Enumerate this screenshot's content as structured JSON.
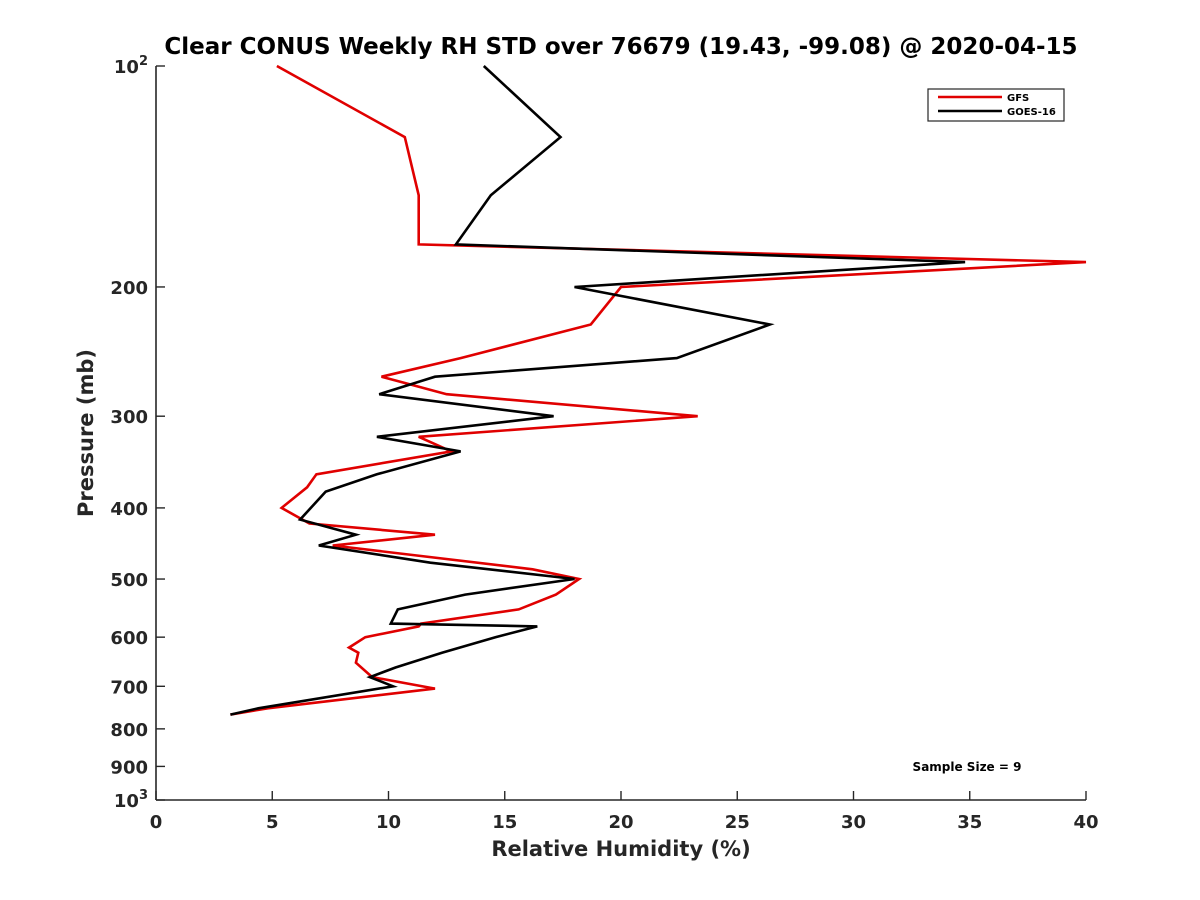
{
  "chart_data": {
    "type": "line",
    "title": "Clear CONUS Weekly RH STD over 76679 (19.43, -99.08) @ 2020-04-15",
    "xlabel": "Relative Humidity (%)",
    "ylabel": "Pressure (mb)",
    "xlim": [
      0,
      40
    ],
    "ylim": [
      100,
      1000
    ],
    "y_scale": "log",
    "y_reversed": true,
    "grid": false,
    "legend_position": "top-right",
    "x_ticks": [
      "0",
      "5",
      "10",
      "15",
      "20",
      "25",
      "30",
      "35",
      "40"
    ],
    "y_ticks": [
      {
        "value": 100,
        "base": "10",
        "exp": "2"
      },
      {
        "value": 200,
        "label": "200"
      },
      {
        "value": 300,
        "label": "300"
      },
      {
        "value": 400,
        "label": "400"
      },
      {
        "value": 500,
        "label": "500"
      },
      {
        "value": 600,
        "label": "600"
      },
      {
        "value": 700,
        "label": "700"
      },
      {
        "value": 800,
        "label": "800"
      },
      {
        "value": 900,
        "label": "900"
      },
      {
        "value": 1000,
        "base": "10",
        "exp": "3"
      }
    ],
    "annotation": "Sample Size = 9",
    "series": [
      {
        "name": "GFS",
        "color": "#e00000",
        "points": [
          [
            5.2,
            100
          ],
          [
            10.7,
            125
          ],
          [
            11.3,
            150
          ],
          [
            11.3,
            175
          ],
          [
            40.0,
            185
          ],
          [
            20.0,
            200
          ],
          [
            18.7,
            225
          ],
          [
            13.1,
            250
          ],
          [
            9.7,
            265
          ],
          [
            12.5,
            280
          ],
          [
            23.3,
            300
          ],
          [
            11.3,
            320
          ],
          [
            12.7,
            335
          ],
          [
            6.9,
            360
          ],
          [
            6.5,
            375
          ],
          [
            5.4,
            400
          ],
          [
            6.6,
            420
          ],
          [
            12.0,
            435
          ],
          [
            7.6,
            450
          ],
          [
            16.2,
            485
          ],
          [
            18.2,
            500
          ],
          [
            17.2,
            525
          ],
          [
            15.6,
            550
          ],
          [
            11.4,
            575
          ],
          [
            11.3,
            580
          ],
          [
            9.0,
            600
          ],
          [
            8.3,
            620
          ],
          [
            8.7,
            630
          ],
          [
            8.6,
            650
          ],
          [
            9.3,
            680
          ],
          [
            12.0,
            705
          ],
          [
            4.8,
            750
          ],
          [
            3.2,
            765
          ]
        ]
      },
      {
        "name": "GOES-16",
        "color": "#000000",
        "points": [
          [
            14.1,
            100
          ],
          [
            17.4,
            125
          ],
          [
            14.4,
            150
          ],
          [
            12.9,
            175
          ],
          [
            34.8,
            185
          ],
          [
            18.0,
            200
          ],
          [
            26.4,
            225
          ],
          [
            22.4,
            250
          ],
          [
            12.0,
            265
          ],
          [
            9.6,
            280
          ],
          [
            17.1,
            300
          ],
          [
            9.5,
            320
          ],
          [
            13.1,
            335
          ],
          [
            9.5,
            360
          ],
          [
            7.3,
            380
          ],
          [
            6.2,
            415
          ],
          [
            8.6,
            435
          ],
          [
            7.0,
            450
          ],
          [
            11.8,
            475
          ],
          [
            18.0,
            500
          ],
          [
            13.3,
            525
          ],
          [
            10.4,
            550
          ],
          [
            10.1,
            575
          ],
          [
            16.4,
            580
          ],
          [
            14.6,
            600
          ],
          [
            12.3,
            630
          ],
          [
            10.3,
            660
          ],
          [
            9.2,
            680
          ],
          [
            10.2,
            700
          ],
          [
            4.4,
            750
          ],
          [
            3.2,
            765
          ]
        ]
      }
    ]
  }
}
